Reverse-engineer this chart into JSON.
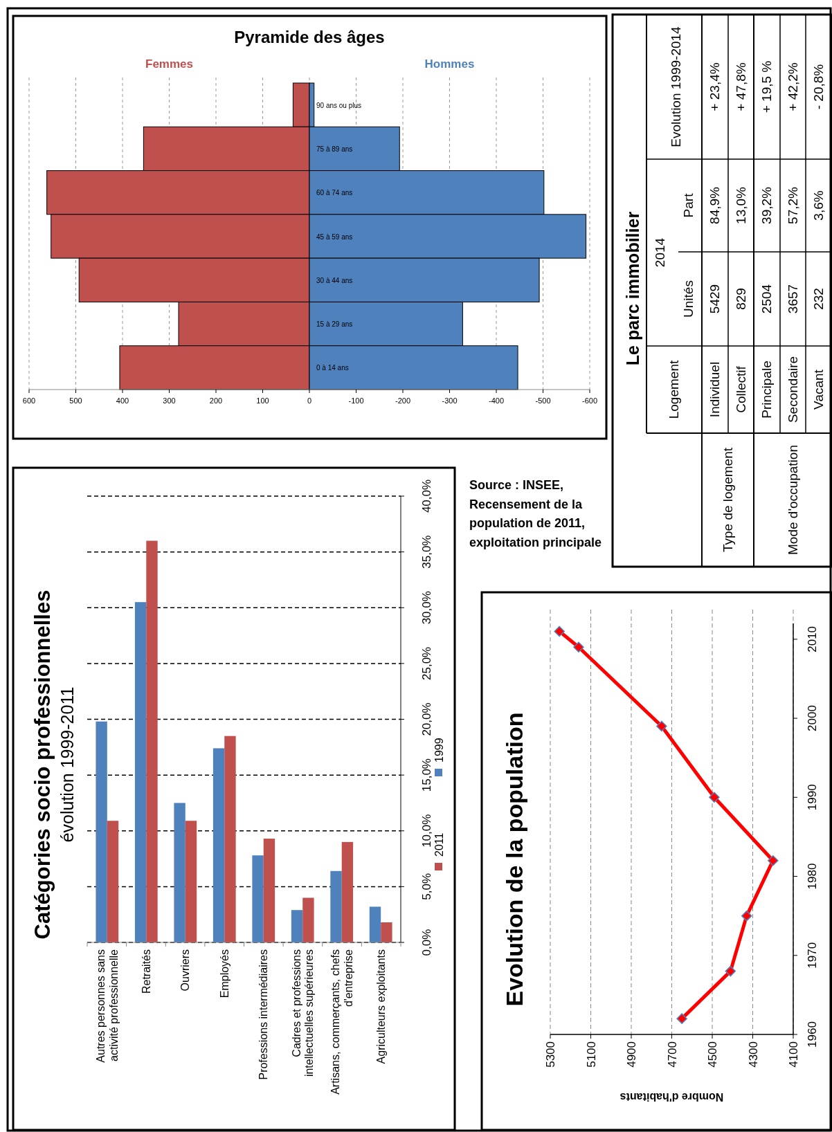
{
  "chart_data": [
    {
      "type": "bar",
      "orientation": "horizontal",
      "stacked": true,
      "title": "Pyramide des âges",
      "categories": [
        "90 ans ou plus",
        "75 à 89 ans",
        "60 à 74 ans",
        "45 à 59 ans",
        "30 à 44 ans",
        "15 à 29 ans",
        "0 à 14 ans"
      ],
      "series": [
        {
          "name": "Femmes",
          "color": "#c0504d",
          "values": [
            35,
            355,
            562,
            553,
            493,
            280,
            406
          ]
        },
        {
          "name": "Hommes",
          "color": "#4f81bd",
          "values": [
            -10,
            -193,
            -502,
            -592,
            -492,
            -328,
            -446
          ]
        }
      ],
      "xlim": [
        600,
        -600
      ],
      "xticks": [
        600,
        500,
        400,
        300,
        200,
        100,
        0,
        -100,
        -200,
        -300,
        -400,
        -500,
        -600
      ],
      "grid": "x"
    },
    {
      "type": "bar",
      "title": "Catégories socio professionnelles",
      "subtitle": "évolution 1999-2011",
      "categories": [
        "Autres personnes sans activité professionnelle",
        "Retraités",
        "Ouvriers",
        "Employés",
        "Professions intermédiaires",
        "Cadres et professions intellectuelles supérieures",
        "Artisans, commerçants, chefs d'entreprise",
        "Agriculteurs exploitants"
      ],
      "series": [
        {
          "name": "1999",
          "color": "#4f81bd",
          "values": [
            19.8,
            30.5,
            12.5,
            17.4,
            7.8,
            2.9,
            6.4,
            3.2
          ]
        },
        {
          "name": "2011",
          "color": "#c0504d",
          "values": [
            10.9,
            36.0,
            10.9,
            18.5,
            9.3,
            4.0,
            9.0,
            1.8
          ]
        }
      ],
      "ylim": [
        0,
        40
      ],
      "yticks": [
        {
          "value": 0,
          "label": "0,0%"
        },
        {
          "value": 5,
          "label": "5,0%"
        },
        {
          "value": 10,
          "label": "10,0%"
        },
        {
          "value": 15,
          "label": "15,0%"
        },
        {
          "value": 20,
          "label": "20,0%"
        },
        {
          "value": 25,
          "label": "25,0%"
        },
        {
          "value": 30,
          "label": "30,0%"
        },
        {
          "value": 35,
          "label": "35,0%"
        },
        {
          "value": 40,
          "label": "40,0%"
        }
      ],
      "grid": "y",
      "legend": "right",
      "annotations": [
        "Source : INSEE, Recensement de la population de 2011, exploitation principale"
      ]
    },
    {
      "type": "line",
      "title": "Evolution de la population",
      "xlabel": "Nombre d'habitants",
      "series": [
        {
          "color": "#ff0000",
          "x": [
            4650,
            4410,
            4330,
            4200,
            4490,
            4750,
            5160,
            5255
          ],
          "values": [
            1962,
            1968,
            1975,
            1982,
            1990,
            1999,
            2009,
            2011
          ]
        }
      ],
      "xlim": [
        5300,
        4100
      ],
      "xticks": [
        5300,
        5100,
        4900,
        4700,
        4500,
        4300,
        4100
      ],
      "ylim": [
        1960,
        2012
      ],
      "yticks": [
        1960,
        1970,
        1980,
        1990,
        2000,
        2010
      ],
      "grid": "x",
      "marker": "diamond"
    },
    {
      "type": "other",
      "title": "Le parc immobilier",
      "annotations": [
        "Logement",
        "2014",
        "Unités",
        "Part",
        "Evolution 1999-2014",
        "Type de logement",
        "Individuel",
        "5429",
        "84,9%",
        "+ 23,4%",
        "Collectif",
        "829",
        "13,0%",
        "+ 47,8%",
        "Mode d'occupation",
        "Principale",
        "2504",
        "39,2%",
        "+ 19,5 %",
        "Secondaire",
        "3657",
        "57,2%",
        "+ 42,2%",
        "Vacant",
        "232",
        "3,6%",
        "- 20,8%"
      ]
    }
  ]
}
